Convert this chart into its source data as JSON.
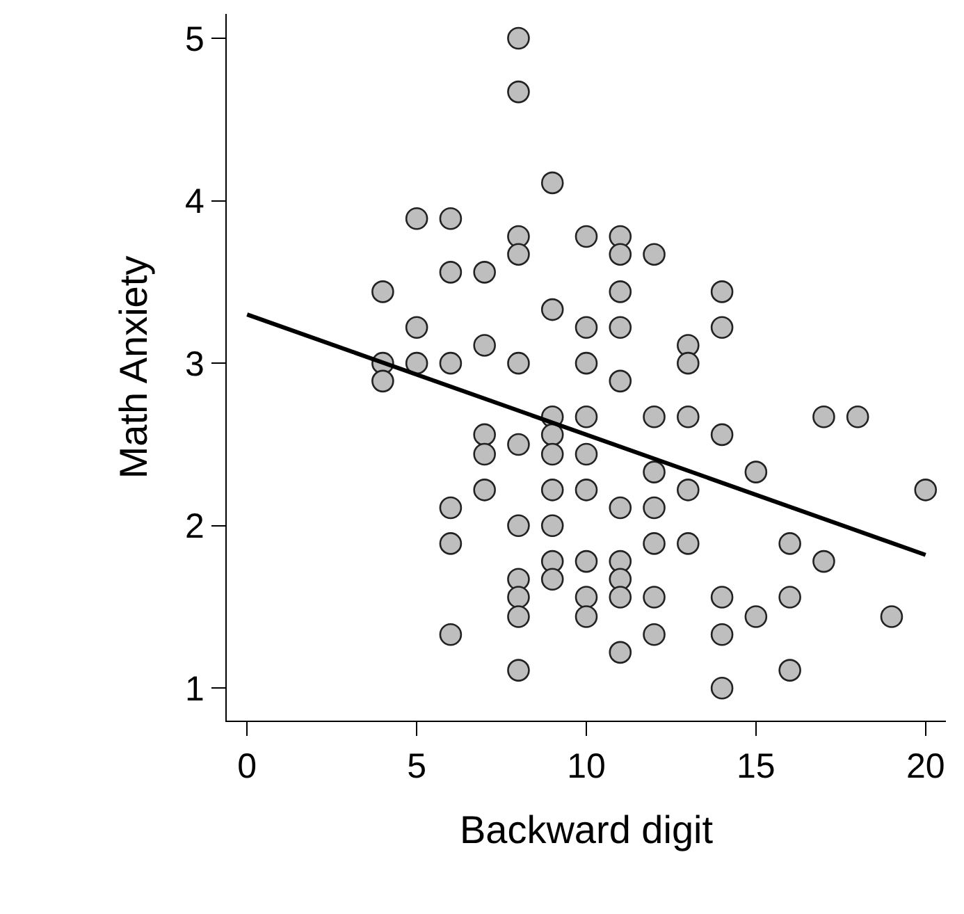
{
  "chart_data": {
    "type": "scatter",
    "xlabel": "Backward digit",
    "ylabel": "Math Anxiety",
    "xlim": [
      -0.6,
      20.6
    ],
    "ylim": [
      0.8,
      5.15
    ],
    "xticks": [
      0,
      5,
      10,
      15,
      20
    ],
    "yticks": [
      1,
      2,
      3,
      4,
      5
    ],
    "legend": false,
    "marker": "circle",
    "series": [
      {
        "color": "#bebebe",
        "x": [
          4,
          4,
          4,
          5,
          5,
          5,
          6,
          6,
          6,
          6,
          6,
          6,
          7,
          7,
          7,
          7,
          7,
          8,
          8,
          8,
          8,
          8,
          8,
          8,
          8,
          8,
          8,
          8,
          9,
          9,
          9,
          9,
          9,
          9,
          9,
          9,
          9,
          10,
          10,
          10,
          10,
          10,
          10,
          10,
          10,
          10,
          11,
          11,
          11,
          11,
          11,
          11,
          11,
          11,
          11,
          11,
          12,
          12,
          12,
          12,
          12,
          12,
          12,
          13,
          13,
          13,
          13,
          13,
          14,
          14,
          14,
          14,
          14,
          14,
          15,
          15,
          16,
          16,
          16,
          17,
          17,
          18,
          19,
          20
        ],
        "values": [
          3.44,
          3.0,
          2.89,
          3.89,
          3.22,
          3.0,
          3.89,
          3.56,
          3.0,
          2.11,
          1.89,
          1.33,
          3.56,
          3.11,
          2.56,
          2.44,
          2.22,
          5.0,
          4.67,
          3.78,
          3.67,
          3.0,
          2.5,
          2.0,
          1.67,
          1.56,
          1.44,
          1.11,
          4.11,
          3.33,
          2.67,
          2.56,
          2.44,
          2.22,
          2.0,
          1.78,
          1.67,
          3.78,
          3.22,
          3.0,
          2.67,
          2.44,
          2.22,
          1.78,
          1.56,
          1.44,
          3.78,
          3.67,
          3.44,
          3.22,
          2.89,
          2.11,
          1.78,
          1.67,
          1.56,
          1.22,
          3.67,
          2.67,
          2.33,
          2.11,
          1.89,
          1.56,
          1.33,
          3.11,
          3.0,
          2.67,
          2.22,
          1.89,
          3.44,
          3.22,
          2.56,
          1.56,
          1.33,
          1.0,
          2.33,
          1.44,
          1.89,
          1.56,
          1.11,
          2.67,
          1.78,
          2.67,
          1.44,
          2.22
        ]
      },
      {
        "type": "line",
        "color": "#000000",
        "x": [
          0,
          20
        ],
        "values": [
          3.3,
          1.82
        ],
        "line_style": "solid",
        "marker": "none"
      }
    ]
  }
}
